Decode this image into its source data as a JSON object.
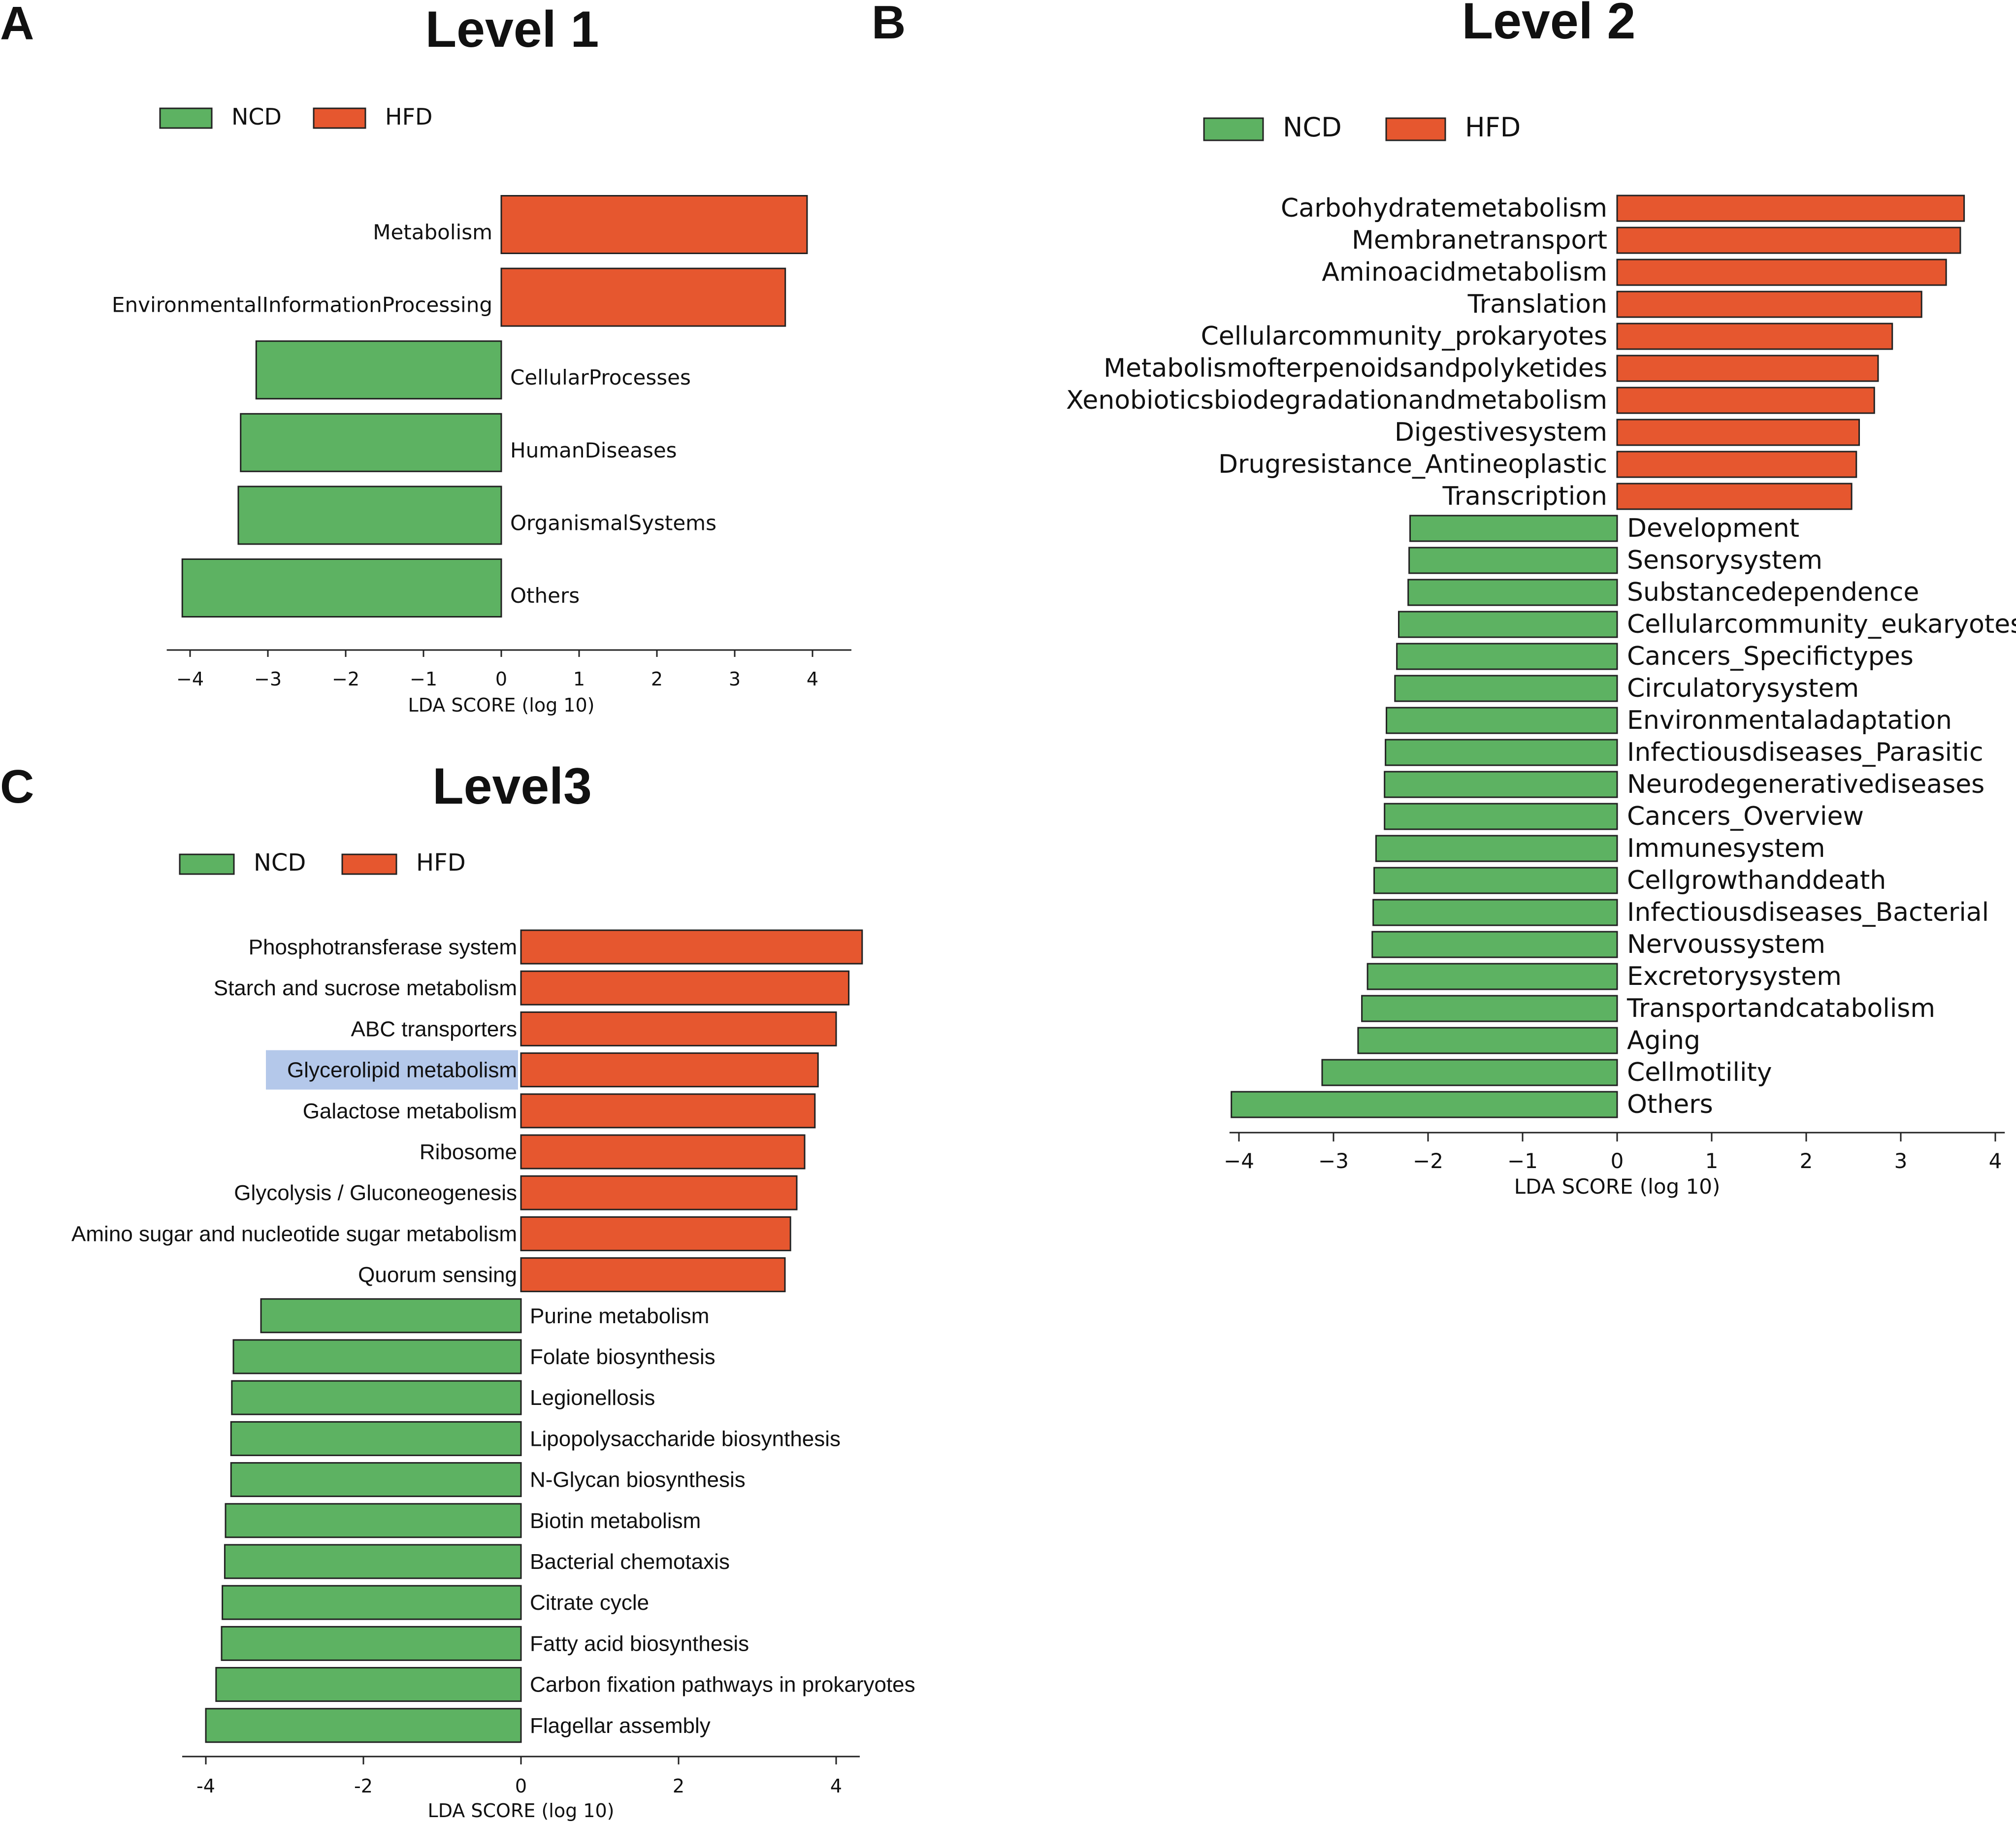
{
  "colors": {
    "NCD": "#5DB262",
    "HFD": "#E6572F",
    "highlight": "#B4C8EA",
    "edge": "#222222"
  },
  "chart_data": [
    {
      "id": "A",
      "panel_label": "A",
      "type": "bar",
      "orientation": "horizontal",
      "title": "Level 1",
      "legend": [
        "NCD",
        "HFD"
      ],
      "xlabel": "LDA SCORE (log 10)",
      "xlim": [
        -4.3,
        4.5
      ],
      "xticks": [
        -4,
        -3,
        -2,
        -1,
        0,
        1,
        2,
        3,
        4
      ],
      "xtick_labels": [
        "−4",
        "−3",
        "−2",
        "−1",
        "0",
        "1",
        "2",
        "3",
        "4"
      ],
      "categories": [
        "Metabolism",
        "EnvironmentalInformationProcessing",
        "CellularProcesses",
        "HumanDiseases",
        "OrganismalSystems",
        "Others"
      ],
      "values": [
        3.93,
        3.65,
        -3.15,
        -3.35,
        -3.38,
        -4.1
      ],
      "groups": [
        "HFD",
        "HFD",
        "NCD",
        "NCD",
        "NCD",
        "NCD"
      ]
    },
    {
      "id": "B",
      "panel_label": "B",
      "type": "bar",
      "orientation": "horizontal",
      "title": "Level 2",
      "legend": [
        "NCD",
        "HFD"
      ],
      "xlabel": "LDA SCORE (log 10)",
      "xlim": [
        -4.1,
        4.1
      ],
      "xticks": [
        -4,
        -3,
        -2,
        -1,
        0,
        1,
        2,
        3,
        4
      ],
      "xtick_labels": [
        "−4",
        "−3",
        "−2",
        "−1",
        "0",
        "1",
        "2",
        "3",
        "4"
      ],
      "categories": [
        "Carbohydratemetabolism",
        "Membranetransport",
        "Aminoacidmetabolism",
        "Translation",
        "Cellularcommunity_prokaryotes",
        "Metabolismofterpenoidsandpolyketides",
        "Xenobioticsbiodegradationandmetabolism",
        "Digestivesystem",
        "Drugresistance_Antineoplastic",
        "Transcription",
        "Development",
        "Sensorysystem",
        "Substancedependence",
        "Cellularcommunity_eukaryotes",
        "Cancers_Specifictypes",
        "Circulatorysystem",
        "Environmentaladaptation",
        "Infectiousdiseases_Parasitic",
        "Neurodegenerativediseases",
        "Cancers_Overview",
        "Immunesystem",
        "Cellgrowthanddeath",
        "Infectiousdiseases_Bacterial",
        "Nervoussystem",
        "Excretorysystem",
        "Transportandcatabolism",
        "Aging",
        "Cellmotility",
        "Others"
      ],
      "values": [
        3.67,
        3.63,
        3.48,
        3.22,
        2.91,
        2.76,
        2.72,
        2.56,
        2.53,
        2.48,
        -2.19,
        -2.2,
        -2.21,
        -2.31,
        -2.33,
        -2.35,
        -2.44,
        -2.45,
        -2.46,
        -2.46,
        -2.55,
        -2.57,
        -2.58,
        -2.59,
        -2.64,
        -2.7,
        -2.74,
        -3.12,
        -4.08
      ],
      "groups": [
        "HFD",
        "HFD",
        "HFD",
        "HFD",
        "HFD",
        "HFD",
        "HFD",
        "HFD",
        "HFD",
        "HFD",
        "NCD",
        "NCD",
        "NCD",
        "NCD",
        "NCD",
        "NCD",
        "NCD",
        "NCD",
        "NCD",
        "NCD",
        "NCD",
        "NCD",
        "NCD",
        "NCD",
        "NCD",
        "NCD",
        "NCD",
        "NCD",
        "NCD"
      ]
    },
    {
      "id": "C",
      "panel_label": "C",
      "type": "bar",
      "orientation": "horizontal",
      "title": "Level3",
      "legend": [
        "NCD",
        "HFD"
      ],
      "xlabel": "LDA SCORE (log 10)",
      "xlim": [
        -4.3,
        4.3
      ],
      "xticks": [
        -4,
        -2,
        0,
        2,
        4
      ],
      "xtick_labels": [
        "-4",
        "-2",
        "0",
        "2",
        "4"
      ],
      "highlighted_category": "Glycerolipid metabolism",
      "categories": [
        "Phosphotransferase system",
        "Starch and sucrose metabolism",
        "ABC transporters",
        "Glycerolipid metabolism",
        "Galactose metabolism",
        "Ribosome",
        "Glycolysis / Gluconeogenesis",
        "Amino sugar and nucleotide sugar metabolism",
        "Quorum sensing",
        "Purine metabolism",
        "Folate biosynthesis",
        "Legionellosis",
        "Lipopolysaccharide biosynthesis",
        "N-Glycan biosynthesis",
        "Biotin metabolism",
        "Bacterial chemotaxis",
        "Citrate cycle",
        "Fatty acid biosynthesis",
        "Carbon fixation pathways in prokaryotes",
        "Flagellar assembly"
      ],
      "values": [
        4.33,
        4.16,
        4.0,
        3.77,
        3.73,
        3.6,
        3.5,
        3.42,
        3.35,
        -3.3,
        -3.65,
        -3.67,
        -3.68,
        -3.68,
        -3.75,
        -3.76,
        -3.79,
        -3.8,
        -3.87,
        -4.0
      ],
      "groups": [
        "HFD",
        "HFD",
        "HFD",
        "HFD",
        "HFD",
        "HFD",
        "HFD",
        "HFD",
        "HFD",
        "NCD",
        "NCD",
        "NCD",
        "NCD",
        "NCD",
        "NCD",
        "NCD",
        "NCD",
        "NCD",
        "NCD",
        "NCD"
      ]
    }
  ]
}
